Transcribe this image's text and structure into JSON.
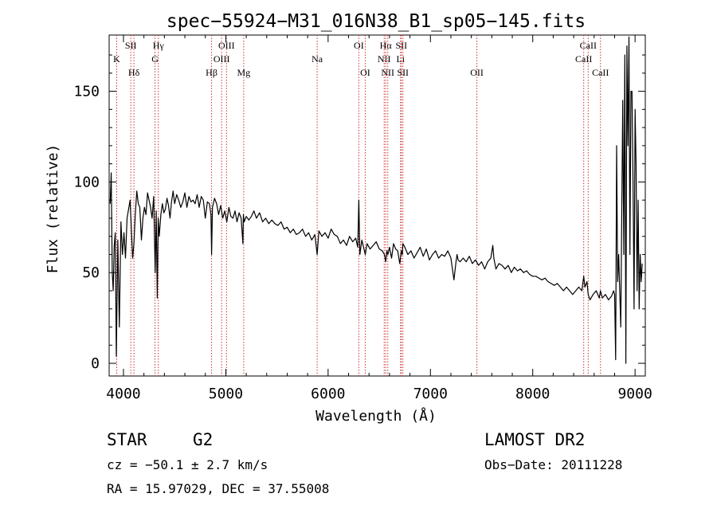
{
  "chart_data": {
    "type": "line",
    "title": "spec−55924−M31_016N38_B1_sp05−145.fits",
    "xlabel": "Wavelength (Å)",
    "ylabel": "Flux (relative)",
    "xlim": [
      3860,
      9100
    ],
    "ylim": [
      -7,
      181
    ],
    "xticks": [
      4000,
      5000,
      6000,
      7000,
      8000,
      9000
    ],
    "xtick_labels": [
      "4000",
      "5000",
      "6000",
      "7000",
      "8000",
      "9000"
    ],
    "yticks": [
      0,
      50,
      100,
      150
    ],
    "ytick_labels": [
      "0",
      "50",
      "100",
      "150"
    ],
    "grid": false,
    "line_color": "#000000",
    "marker_color": "#cc3333",
    "series": [
      {
        "x": [
          3870,
          3880,
          3890,
          3900,
          3910,
          3920,
          3930,
          3945,
          3960,
          3975,
          3990,
          4005,
          4020,
          4035,
          4050,
          4065,
          4080,
          4090,
          4102,
          4115,
          4130,
          4145,
          4160,
          4175,
          4190,
          4205,
          4220,
          4235,
          4250,
          4265,
          4280,
          4295,
          4310,
          4320,
          4330,
          4340,
          4350,
          4365,
          4380,
          4395,
          4410,
          4425,
          4440,
          4455,
          4470,
          4485,
          4500,
          4520,
          4540,
          4560,
          4580,
          4600,
          4620,
          4640,
          4660,
          4680,
          4700,
          4720,
          4740,
          4760,
          4780,
          4800,
          4820,
          4840,
          4855,
          4861,
          4870,
          4890,
          4910,
          4930,
          4950,
          4970,
          4990,
          5010,
          5030,
          5050,
          5070,
          5090,
          5110,
          5130,
          5150,
          5167,
          5172,
          5180,
          5200,
          5225,
          5250,
          5275,
          5300,
          5330,
          5360,
          5390,
          5420,
          5450,
          5480,
          5510,
          5540,
          5570,
          5600,
          5630,
          5660,
          5690,
          5720,
          5750,
          5780,
          5810,
          5840,
          5870,
          5893,
          5910,
          5940,
          5970,
          6000,
          6030,
          6060,
          6090,
          6120,
          6150,
          6180,
          6210,
          6240,
          6270,
          6290,
          6300,
          6310,
          6330,
          6363,
          6380,
          6410,
          6440,
          6470,
          6500,
          6530,
          6550,
          6563,
          6575,
          6584,
          6600,
          6620,
          6640,
          6660,
          6680,
          6700,
          6716,
          6725,
          6731,
          6750,
          6780,
          6810,
          6840,
          6870,
          6900,
          6930,
          6960,
          6990,
          7020,
          7050,
          7080,
          7110,
          7140,
          7170,
          7200,
          7230,
          7250,
          7260,
          7270,
          7290,
          7320,
          7350,
          7380,
          7410,
          7440,
          7470,
          7500,
          7530,
          7560,
          7590,
          7610,
          7620,
          7640,
          7670,
          7700,
          7730,
          7760,
          7790,
          7820,
          7850,
          7880,
          7910,
          7940,
          7970,
          8000,
          8030,
          8060,
          8090,
          8120,
          8150,
          8180,
          8210,
          8240,
          8270,
          8300,
          8330,
          8360,
          8390,
          8420,
          8450,
          8480,
          8498,
          8510,
          8530,
          8542,
          8560,
          8590,
          8620,
          8650,
          8662,
          8680,
          8710,
          8740,
          8770,
          8790,
          8800,
          8810,
          8820,
          8830,
          8840,
          8860,
          8880,
          8890,
          8900,
          8910,
          8920,
          8930,
          8940,
          8950,
          8960,
          8970,
          8980,
          8990,
          9000,
          9010,
          9020,
          9030,
          9040,
          9050,
          9060,
          9070
        ],
        "y": [
          88,
          105,
          50,
          40,
          65,
          72,
          4,
          68,
          20,
          78,
          60,
          72,
          58,
          80,
          85,
          90,
          70,
          58,
          66,
          82,
          95,
          88,
          86,
          68,
          80,
          86,
          82,
          94,
          90,
          86,
          80,
          92,
          50,
          84,
          36,
          80,
          70,
          82,
          88,
          83,
          85,
          91,
          87,
          80,
          89,
          95,
          88,
          93,
          90,
          86,
          89,
          94,
          86,
          92,
          89,
          90,
          88,
          93,
          86,
          92,
          90,
          80,
          89,
          88,
          82,
          60,
          86,
          91,
          88,
          82,
          87,
          80,
          84,
          78,
          86,
          81,
          80,
          84,
          78,
          83,
          80,
          66,
          82,
          78,
          81,
          79,
          81,
          84,
          80,
          83,
          78,
          80,
          77,
          79,
          77,
          76,
          78,
          74,
          75,
          72,
          74,
          71,
          72,
          74,
          70,
          72,
          68,
          71,
          60,
          73,
          70,
          72,
          69,
          74,
          71,
          70,
          66,
          68,
          65,
          70,
          67,
          69,
          64,
          90,
          60,
          68,
          60,
          66,
          63,
          65,
          67,
          63,
          62,
          60,
          56,
          62,
          60,
          64,
          58,
          66,
          63,
          62,
          55,
          62,
          60,
          66,
          64,
          60,
          62,
          58,
          61,
          64,
          59,
          63,
          57,
          60,
          62,
          58,
          60,
          59,
          62,
          58,
          46,
          56,
          60,
          57,
          56,
          58,
          56,
          59,
          55,
          57,
          54,
          56,
          52,
          56,
          58,
          65,
          58,
          52,
          55,
          54,
          52,
          54,
          50,
          53,
          51,
          52,
          50,
          51,
          49,
          48,
          48,
          47,
          46,
          47,
          45,
          44,
          43,
          44,
          42,
          40,
          42,
          40,
          38,
          40,
          42,
          40,
          48,
          42,
          45,
          38,
          35,
          38,
          40,
          36,
          40,
          36,
          38,
          35,
          37,
          40,
          38,
          2,
          120,
          45,
          60,
          20,
          145,
          60,
          170,
          0,
          175,
          120,
          180,
          60,
          150,
          150,
          100,
          30,
          140,
          110,
          40,
          90,
          30,
          60,
          45,
          55
        ]
      }
    ],
    "line_markers": [
      {
        "w": 3934,
        "label": "K",
        "row": 2
      },
      {
        "w": 4072,
        "label": "SII",
        "row": 1
      },
      {
        "w": 4102,
        "label": "Hδ",
        "row": 3
      },
      {
        "w": 4308,
        "label": "G",
        "row": 2
      },
      {
        "w": 4341,
        "label": "Hγ",
        "row": 1
      },
      {
        "w": 4861,
        "label": "Hβ",
        "row": 3
      },
      {
        "w": 4959,
        "label": "OIII",
        "row": 2
      },
      {
        "w": 5007,
        "label": "OIII",
        "row": 1
      },
      {
        "w": 5175,
        "label": "Mg",
        "row": 3
      },
      {
        "w": 5893,
        "label": "Na",
        "row": 2
      },
      {
        "w": 6300,
        "label": "OI",
        "row": 1
      },
      {
        "w": 6363,
        "label": "OI",
        "row": 3
      },
      {
        "w": 6548,
        "label": "NII",
        "row": 2
      },
      {
        "w": 6563,
        "label": "Hα",
        "row": 1
      },
      {
        "w": 6583,
        "label": "NII",
        "row": 3
      },
      {
        "w": 6708,
        "label": "Li",
        "row": 2
      },
      {
        "w": 6716,
        "label": "SII",
        "row": 1
      },
      {
        "w": 6731,
        "label": "SII",
        "row": 3
      },
      {
        "w": 7454,
        "label": "OII",
        "row": 3
      },
      {
        "w": 8498,
        "label": "CaII",
        "row": 2
      },
      {
        "w": 8542,
        "label": "CaII",
        "row": 1
      },
      {
        "w": 8662,
        "label": "CaII",
        "row": 3
      }
    ]
  },
  "info": {
    "object_class": "STAR",
    "subclass": "G2",
    "redshift_text": "cz = −50.1 ± 2.7 km/s",
    "coords_text": "RA =  15.97029, DEC =  37.55008",
    "survey": "LAMOST DR2",
    "obs_date_text": "Obs−Date: 20111228"
  }
}
